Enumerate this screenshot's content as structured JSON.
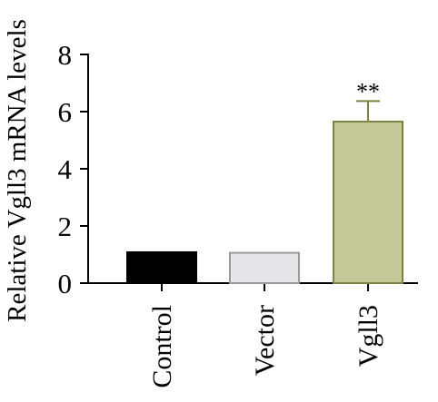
{
  "chart_data": {
    "type": "bar",
    "title": "",
    "xlabel": "",
    "ylabel": "Relative Vgll3 mRNA levels",
    "ylim": [
      0,
      8
    ],
    "yticks": [
      0,
      2,
      4,
      6,
      8
    ],
    "categories": [
      "Control",
      "Vector",
      "Vgll3"
    ],
    "values": [
      1.08,
      1.06,
      5.65
    ],
    "error": [
      0,
      0,
      0.72
    ],
    "annotations": [
      "",
      "",
      "**"
    ],
    "grid": false,
    "colors": {
      "Control": "#000000",
      "Vector": "#e6e6e8",
      "Vgll3": "#c4c99a",
      "Vgll3_edge": "#7d8240",
      "axis": "#000000"
    }
  }
}
